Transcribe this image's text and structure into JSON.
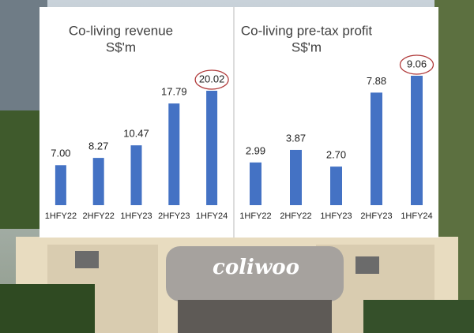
{
  "chart_data": [
    {
      "type": "bar",
      "title": "Co-living revenue",
      "subtitle": "S$'m",
      "categories": [
        "1HFY22",
        "2HFY22",
        "1HFY23",
        "2HFY23",
        "1HFY24"
      ],
      "values": [
        7.0,
        8.27,
        10.47,
        17.79,
        20.02
      ],
      "value_labels": [
        "7.00",
        "8.27",
        "10.47",
        "17.79",
        "20.02"
      ],
      "color": "#4472c4"
    },
    {
      "type": "bar",
      "title": "Co-living pre-tax profit",
      "subtitle": "S$'m",
      "categories": [
        "1HFY22",
        "2HFY22",
        "1HFY23",
        "2HFY23",
        "1HFY24"
      ],
      "values": [
        2.99,
        3.87,
        2.7,
        7.88,
        9.06
      ],
      "value_labels": [
        "2.99",
        "3.87",
        "2.70",
        "7.88",
        "9.06"
      ],
      "color": "#4472c4"
    }
  ],
  "sign_text": "coliwoo"
}
